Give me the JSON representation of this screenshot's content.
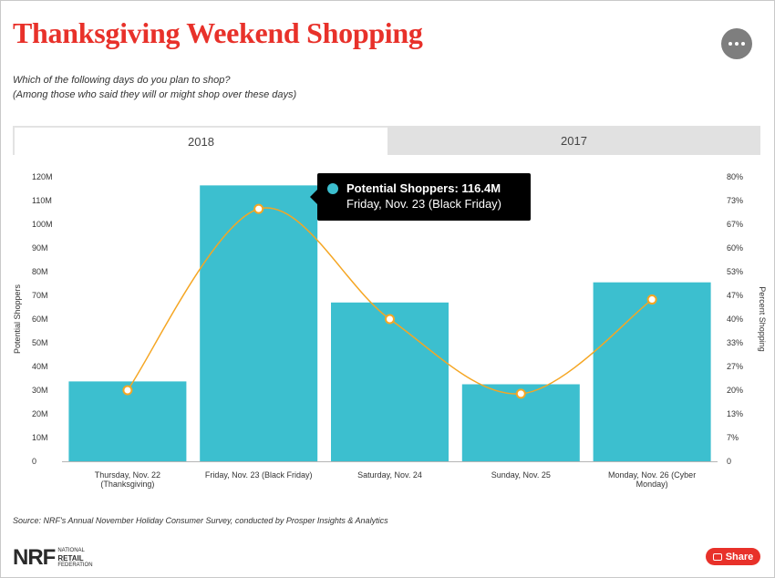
{
  "title": "Thanksgiving Weekend Shopping",
  "subtitle_lines": [
    "Which of the following days do you plan to shop?",
    "(Among those who said they will or might shop over these days)"
  ],
  "tabs": [
    {
      "label": "2018",
      "active": true
    },
    {
      "label": "2017",
      "active": false
    }
  ],
  "tooltip": {
    "series_label": "Potential Shoppers: 116.4M",
    "category": "Friday, Nov. 23 (Black Friday)"
  },
  "source": "Source:  NRF's Annual November Holiday Consumer Survey, conducted by Prosper Insights & Analytics",
  "logo": {
    "mark": "NRF",
    "words": [
      "NATIONAL",
      "RETAIL",
      "FEDERATION"
    ]
  },
  "share_label": "Share",
  "more_icon": "more-horizontal-icon",
  "colors": {
    "title": "#e8312a",
    "bar": "#3cbfcf",
    "line": "#f5a623",
    "share": "#e8312a"
  },
  "chart_data": {
    "type": "bar",
    "categories": [
      [
        "Thursday, Nov. 22",
        "(Thanksgiving)"
      ],
      [
        "Friday, Nov. 23 (Black Friday)"
      ],
      [
        "Saturday, Nov. 24"
      ],
      [
        "Sunday, Nov. 25"
      ],
      [
        "Monday, Nov. 26 (Cyber",
        "Monday)"
      ]
    ],
    "series": [
      {
        "name": "Potential Shoppers",
        "type": "bar",
        "axis": "left",
        "values": [
          33.7,
          116.4,
          67.0,
          32.5,
          75.5
        ]
      },
      {
        "axis": "right",
        "type": "line",
        "smooth": true,
        "values": [
          20.0,
          71.0,
          40.0,
          19.0,
          45.5
        ]
      }
    ],
    "left_axis": {
      "label": "Potential Shoppers",
      "min": 0,
      "max": 120,
      "ticks": [
        "0",
        "10M",
        "20M",
        "30M",
        "40M",
        "50M",
        "60M",
        "70M",
        "80M",
        "90M",
        "100M",
        "110M",
        "120M"
      ]
    },
    "right_axis": {
      "label": "Percent Shopping",
      "min": 0,
      "max": 80,
      "ticks": [
        "0",
        "7%",
        "13%",
        "20%",
        "27%",
        "33%",
        "40%",
        "47%",
        "53%",
        "60%",
        "67%",
        "73%",
        "80%"
      ]
    },
    "grid": false,
    "legend": "none"
  }
}
